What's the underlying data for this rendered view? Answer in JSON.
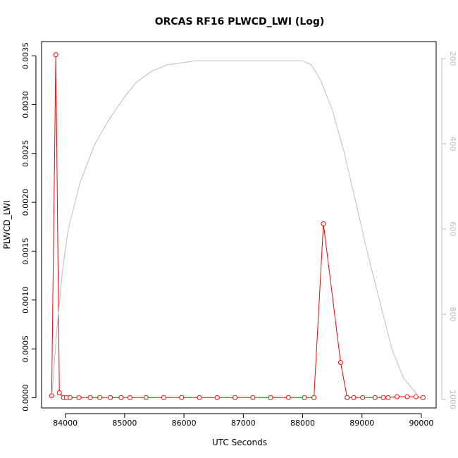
{
  "chart_data": {
    "type": "line",
    "title": "ORCAS RF16 PLWCD_LWI (Log)",
    "xlabel": "UTC Seconds",
    "ylabel": "PLWCD_LWI",
    "xlim": [
      83600,
      90250
    ],
    "ylim": [
      -0.000105,
      0.003645
    ],
    "y2lim": [
      1020,
      160
    ],
    "x_ticks": [
      84000,
      85000,
      86000,
      87000,
      88000,
      89000,
      90000
    ],
    "x_tick_labels": [
      "84000",
      "85000",
      "86000",
      "87000",
      "88000",
      "89000",
      "90000"
    ],
    "y_ticks": [
      0.0,
      0.0005,
      0.001,
      0.0015,
      0.002,
      0.0025,
      0.003,
      0.0035
    ],
    "y_tick_labels": [
      "0.0000",
      "0.0005",
      "0.0010",
      "0.0015",
      "0.0020",
      "0.0025",
      "0.0030",
      "0.0035"
    ],
    "y2_ticks": [
      200,
      400,
      600,
      800,
      1000
    ],
    "y2_tick_labels": [
      "200",
      "400",
      "600",
      "800",
      "1000"
    ],
    "grid": false,
    "series": [
      {
        "color": "#ff0000",
        "marker": "open-circle",
        "points": [
          [
            83770,
            2e-05
          ],
          [
            83840,
            0.00351
          ],
          [
            83900,
            5e-05
          ],
          [
            83970,
            1e-06
          ],
          [
            84020,
            1e-06
          ],
          [
            84080,
            1e-06
          ],
          [
            84230,
            1e-06
          ],
          [
            84420,
            1e-06
          ],
          [
            84580,
            1e-06
          ],
          [
            84760,
            1e-06
          ],
          [
            84940,
            1e-06
          ],
          [
            85090,
            1e-06
          ],
          [
            85360,
            1e-06
          ],
          [
            85660,
            1e-06
          ],
          [
            85960,
            1e-06
          ],
          [
            86260,
            1e-06
          ],
          [
            86560,
            1e-06
          ],
          [
            86860,
            1e-06
          ],
          [
            87160,
            1e-06
          ],
          [
            87460,
            1e-06
          ],
          [
            87760,
            1e-06
          ],
          [
            88030,
            1e-06
          ],
          [
            88190,
            1e-06
          ],
          [
            88350,
            0.00178
          ],
          [
            88640,
            0.00036
          ],
          [
            88750,
            1e-06
          ],
          [
            88860,
            1e-06
          ],
          [
            89010,
            1e-06
          ],
          [
            89220,
            1e-06
          ],
          [
            89360,
            1e-06
          ],
          [
            89440,
            1e-06
          ],
          [
            89590,
            1e-05
          ],
          [
            89760,
            1e-05
          ],
          [
            89910,
            1e-05
          ],
          [
            90030,
            1e-06
          ]
        ]
      },
      {
        "color": "#bdbdbd",
        "axis": "right",
        "points": [
          [
            83770,
            1000
          ],
          [
            83850,
            850
          ],
          [
            83950,
            700
          ],
          [
            84050,
            600
          ],
          [
            84250,
            490
          ],
          [
            84500,
            400
          ],
          [
            84750,
            340
          ],
          [
            85000,
            290
          ],
          [
            85200,
            255
          ],
          [
            85450,
            230
          ],
          [
            85700,
            215
          ],
          [
            85950,
            210
          ],
          [
            86200,
            205
          ],
          [
            86500,
            205
          ],
          [
            87000,
            205
          ],
          [
            87500,
            205
          ],
          [
            88000,
            205
          ],
          [
            88150,
            215
          ],
          [
            88300,
            250
          ],
          [
            88500,
            320
          ],
          [
            88700,
            420
          ],
          [
            88900,
            540
          ],
          [
            89100,
            660
          ],
          [
            89300,
            770
          ],
          [
            89500,
            880
          ],
          [
            89700,
            950
          ],
          [
            90000,
            1000
          ]
        ]
      }
    ]
  }
}
